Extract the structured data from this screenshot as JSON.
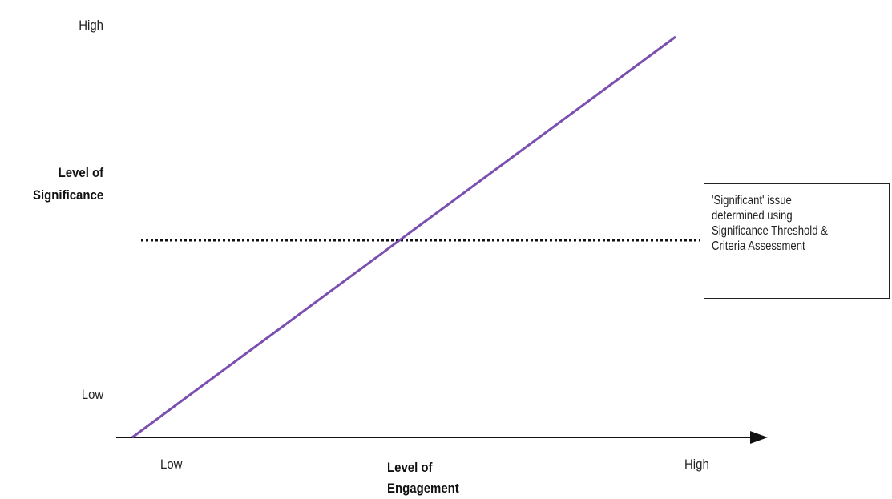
{
  "y_axis": {
    "label": "Level of\nSignificance",
    "high": "High",
    "low": "Low"
  },
  "x_axis": {
    "label": "Level of\nEngagement",
    "low": "Low",
    "high": "High"
  },
  "threshold_note": "'Significant' issue\ndetermined using\nSignificance Threshold &\nCriteria Assessment",
  "colors": {
    "trend_line": "#7b4fb0",
    "axis": "#111111",
    "threshold_line": "#111111"
  }
}
